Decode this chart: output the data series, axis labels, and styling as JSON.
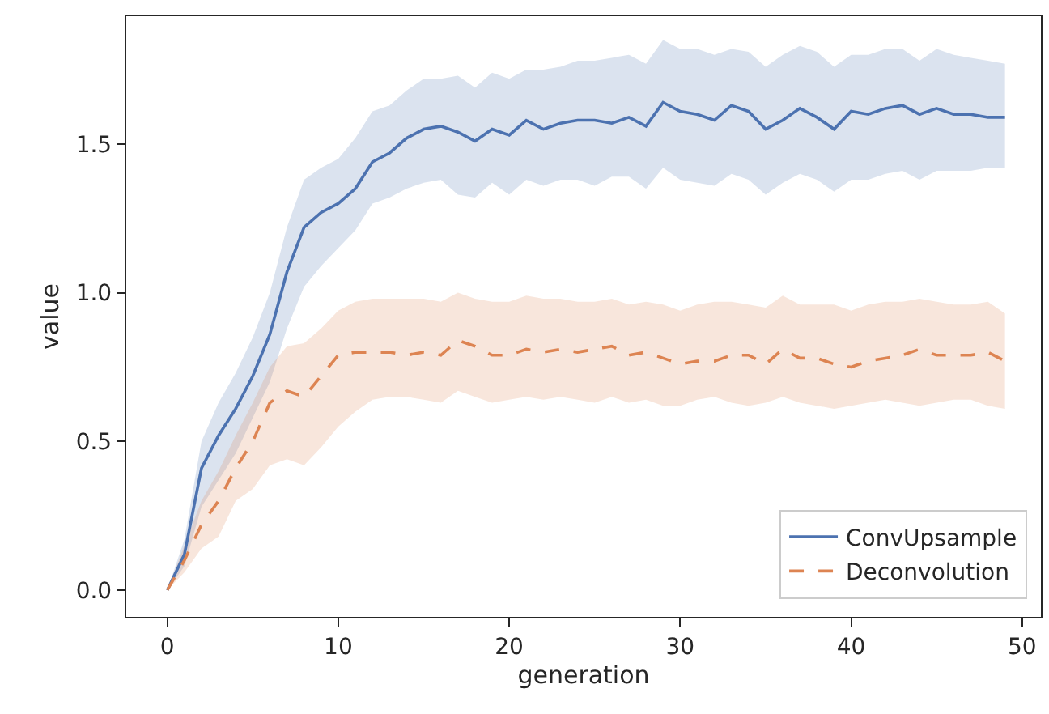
{
  "chart_data": {
    "type": "line",
    "xlabel": "generation",
    "ylabel": "value",
    "x": [
      0,
      1,
      2,
      3,
      4,
      5,
      6,
      7,
      8,
      9,
      10,
      11,
      12,
      13,
      14,
      15,
      16,
      17,
      18,
      19,
      20,
      21,
      22,
      23,
      24,
      25,
      26,
      27,
      28,
      29,
      30,
      31,
      32,
      33,
      34,
      35,
      36,
      37,
      38,
      39,
      40,
      41,
      42,
      43,
      44,
      45,
      46,
      47,
      48,
      49
    ],
    "series": [
      {
        "name": "ConvUpsample",
        "color": "#4c72b0",
        "line_style": "solid",
        "values": [
          0,
          0.12,
          0.41,
          0.52,
          0.61,
          0.72,
          0.86,
          1.07,
          1.22,
          1.27,
          1.3,
          1.35,
          1.44,
          1.47,
          1.52,
          1.55,
          1.56,
          1.54,
          1.51,
          1.55,
          1.53,
          1.58,
          1.55,
          1.57,
          1.58,
          1.58,
          1.57,
          1.59,
          1.56,
          1.64,
          1.61,
          1.6,
          1.58,
          1.63,
          1.61,
          1.55,
          1.58,
          1.62,
          1.59,
          1.55,
          1.61,
          1.6,
          1.62,
          1.63,
          1.6,
          1.62,
          1.6,
          1.6,
          1.59,
          1.59
        ],
        "lower": [
          0,
          0.08,
          0.28,
          0.37,
          0.46,
          0.58,
          0.7,
          0.88,
          1.02,
          1.09,
          1.15,
          1.21,
          1.3,
          1.32,
          1.35,
          1.37,
          1.38,
          1.33,
          1.32,
          1.37,
          1.33,
          1.38,
          1.36,
          1.38,
          1.38,
          1.36,
          1.39,
          1.39,
          1.35,
          1.42,
          1.38,
          1.37,
          1.36,
          1.4,
          1.38,
          1.33,
          1.37,
          1.4,
          1.38,
          1.34,
          1.38,
          1.38,
          1.4,
          1.41,
          1.38,
          1.41,
          1.41,
          1.41,
          1.42,
          1.42
        ],
        "upper": [
          0,
          0.17,
          0.5,
          0.63,
          0.73,
          0.85,
          1.0,
          1.22,
          1.38,
          1.42,
          1.45,
          1.52,
          1.61,
          1.63,
          1.68,
          1.72,
          1.72,
          1.73,
          1.69,
          1.74,
          1.72,
          1.75,
          1.75,
          1.76,
          1.78,
          1.78,
          1.79,
          1.8,
          1.77,
          1.85,
          1.82,
          1.82,
          1.8,
          1.82,
          1.81,
          1.76,
          1.8,
          1.83,
          1.81,
          1.76,
          1.8,
          1.8,
          1.82,
          1.82,
          1.78,
          1.82,
          1.8,
          1.79,
          1.78,
          1.77
        ]
      },
      {
        "name": "Deconvolution",
        "color": "#dd8452",
        "line_style": "dashed",
        "values": [
          0,
          0.1,
          0.22,
          0.3,
          0.41,
          0.5,
          0.63,
          0.67,
          0.65,
          0.72,
          0.79,
          0.8,
          0.8,
          0.8,
          0.79,
          0.8,
          0.79,
          0.84,
          0.82,
          0.79,
          0.79,
          0.81,
          0.8,
          0.81,
          0.8,
          0.81,
          0.82,
          0.79,
          0.8,
          0.78,
          0.76,
          0.77,
          0.77,
          0.79,
          0.79,
          0.76,
          0.81,
          0.78,
          0.78,
          0.76,
          0.75,
          0.77,
          0.78,
          0.79,
          0.81,
          0.79,
          0.79,
          0.79,
          0.8,
          0.77
        ],
        "lower": [
          0,
          0.06,
          0.14,
          0.18,
          0.3,
          0.34,
          0.42,
          0.44,
          0.42,
          0.48,
          0.55,
          0.6,
          0.64,
          0.65,
          0.65,
          0.64,
          0.63,
          0.67,
          0.65,
          0.63,
          0.64,
          0.65,
          0.64,
          0.65,
          0.64,
          0.63,
          0.65,
          0.63,
          0.64,
          0.62,
          0.62,
          0.64,
          0.65,
          0.63,
          0.62,
          0.63,
          0.65,
          0.63,
          0.62,
          0.61,
          0.62,
          0.63,
          0.64,
          0.63,
          0.62,
          0.63,
          0.64,
          0.64,
          0.62,
          0.61
        ],
        "upper": [
          0,
          0.15,
          0.3,
          0.4,
          0.52,
          0.63,
          0.75,
          0.82,
          0.83,
          0.88,
          0.94,
          0.97,
          0.98,
          0.98,
          0.98,
          0.98,
          0.97,
          1.0,
          0.98,
          0.97,
          0.97,
          0.99,
          0.98,
          0.98,
          0.97,
          0.97,
          0.98,
          0.96,
          0.97,
          0.96,
          0.94,
          0.96,
          0.97,
          0.97,
          0.96,
          0.95,
          0.99,
          0.96,
          0.96,
          0.96,
          0.94,
          0.96,
          0.97,
          0.97,
          0.98,
          0.97,
          0.96,
          0.96,
          0.97,
          0.93
        ]
      }
    ],
    "xlim": [
      -2.4,
      51.1
    ],
    "ylim": [
      -0.09,
      1.93
    ],
    "xticks": [
      0,
      10,
      20,
      30,
      40,
      50
    ],
    "yticks": [
      {
        "value": 0,
        "label": "0.0"
      },
      {
        "value": 0.5,
        "label": "0.5"
      },
      {
        "value": 1,
        "label": "1.0"
      },
      {
        "value": 1.5,
        "label": "1.5"
      }
    ],
    "grid": false,
    "legend": "bottom right",
    "marker": "none"
  }
}
